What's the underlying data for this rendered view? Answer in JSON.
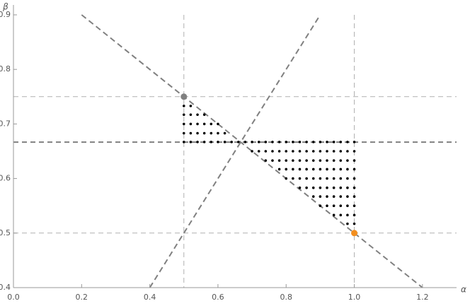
{
  "chart_data": {
    "type": "scatter",
    "xlabel": "α",
    "ylabel": "β",
    "xlim": [
      0,
      1.3
    ],
    "ylim": [
      0.4,
      0.9
    ],
    "xticks": [
      {
        "value": 0,
        "label": "0.0"
      },
      0.2,
      0.4,
      0.6,
      0.8,
      {
        "value": 1,
        "label": "1.0"
      },
      1.2
    ],
    "yticks": [
      0.4,
      0.5,
      0.6,
      0.7,
      0.8,
      0.9
    ],
    "vlines": [
      {
        "x": 0.5,
        "color": "#b0b0b0"
      },
      {
        "x": 1,
        "color": "#b0b0b0"
      }
    ],
    "hlines": [
      {
        "y": 0.75,
        "color": "#b0b0b0"
      },
      {
        "y": 0.5,
        "color": "#b0b0b0"
      },
      {
        "y": 0.6667,
        "color": "#808080"
      }
    ],
    "lines": [
      {
        "color": "#808080",
        "x": [
          0.2,
          1.2
        ],
        "values": [
          0.9,
          0.4
        ]
      },
      {
        "color": "#808080",
        "x": [
          0.4,
          0.9
        ],
        "values": [
          0.4,
          0.9
        ]
      }
    ],
    "points": [
      {
        "color": "#808080",
        "x": [
          0.5
        ],
        "values": [
          0.75
        ]
      },
      {
        "color": "#f28e1e",
        "x": [
          1
        ],
        "values": [
          0.5
        ]
      }
    ],
    "series": [
      {
        "color": "#000000",
        "x": [
          0.5,
          0.52
        ],
        "values": [
          0.733,
          0.733
        ]
      },
      {
        "color": "#000000",
        "x": [
          0.5,
          0.52,
          0.54,
          0.56
        ],
        "values": [
          0.717,
          0.717,
          0.717,
          0.717
        ]
      },
      {
        "color": "#000000",
        "x": [
          0.5,
          0.52,
          0.54,
          0.56,
          0.58,
          0.6
        ],
        "values": [
          0.7,
          0.7,
          0.7,
          0.7,
          0.7,
          0.7
        ]
      },
      {
        "color": "#000000",
        "x": [
          0.5,
          0.52,
          0.54,
          0.56,
          0.58,
          0.6,
          0.62
        ],
        "values": [
          0.683,
          0.683,
          0.683,
          0.683,
          0.683,
          0.683,
          0.683
        ]
      },
      {
        "color": "#000000",
        "x": [
          0.5,
          0.52,
          0.54,
          0.56,
          0.58,
          0.6,
          0.62,
          0.64,
          0.66,
          0.68,
          0.7,
          0.72,
          0.74,
          0.76,
          0.78,
          0.8,
          0.82,
          0.84,
          0.86,
          0.88,
          0.9,
          0.92,
          0.94,
          0.96,
          0.98,
          1
        ],
        "values": [
          0.667,
          0.667,
          0.667,
          0.667,
          0.667,
          0.667,
          0.667,
          0.667,
          0.667,
          0.667,
          0.667,
          0.667,
          0.667,
          0.667,
          0.667,
          0.667,
          0.667,
          0.667,
          0.667,
          0.667,
          0.667,
          0.667,
          0.667,
          0.667,
          0.667,
          0.667
        ]
      },
      {
        "color": "#000000",
        "x": [
          0.7,
          0.72,
          0.74,
          0.76,
          0.78,
          0.8,
          0.82,
          0.84,
          0.86,
          0.88,
          0.9,
          0.92,
          0.94,
          0.96,
          0.98,
          1
        ],
        "values": [
          0.65,
          0.65,
          0.65,
          0.65,
          0.65,
          0.65,
          0.65,
          0.65,
          0.65,
          0.65,
          0.65,
          0.65,
          0.65,
          0.65,
          0.65,
          0.65
        ]
      },
      {
        "color": "#000000",
        "x": [
          0.74,
          0.76,
          0.78,
          0.8,
          0.82,
          0.84,
          0.86,
          0.88,
          0.9,
          0.92,
          0.94,
          0.96,
          0.98,
          1
        ],
        "values": [
          0.633,
          0.633,
          0.633,
          0.633,
          0.633,
          0.633,
          0.633,
          0.633,
          0.633,
          0.633,
          0.633,
          0.633,
          0.633,
          0.633
        ]
      },
      {
        "color": "#000000",
        "x": [
          0.78,
          0.8,
          0.82,
          0.84,
          0.86,
          0.88,
          0.9,
          0.92,
          0.94,
          0.96,
          0.98,
          1
        ],
        "values": [
          0.617,
          0.617,
          0.617,
          0.617,
          0.617,
          0.617,
          0.617,
          0.617,
          0.617,
          0.617,
          0.617,
          0.617
        ]
      },
      {
        "color": "#000000",
        "x": [
          0.8,
          0.82,
          0.84,
          0.86,
          0.88,
          0.9,
          0.92,
          0.94,
          0.96,
          0.98,
          1
        ],
        "values": [
          0.6,
          0.6,
          0.6,
          0.6,
          0.6,
          0.6,
          0.6,
          0.6,
          0.6,
          0.6,
          0.6
        ]
      },
      {
        "color": "#000000",
        "x": [
          0.84,
          0.86,
          0.88,
          0.9,
          0.92,
          0.94,
          0.96,
          0.98,
          1
        ],
        "values": [
          0.583,
          0.583,
          0.583,
          0.583,
          0.583,
          0.583,
          0.583,
          0.583,
          0.583
        ]
      },
      {
        "color": "#000000",
        "x": [
          0.88,
          0.9,
          0.92,
          0.94,
          0.96,
          0.98,
          1
        ],
        "values": [
          0.567,
          0.567,
          0.567,
          0.567,
          0.567,
          0.567,
          0.567
        ]
      },
      {
        "color": "#000000",
        "x": [
          0.9,
          0.92,
          0.94,
          0.96,
          0.98,
          1
        ],
        "values": [
          0.55,
          0.55,
          0.55,
          0.55,
          0.55,
          0.55
        ]
      },
      {
        "color": "#000000",
        "x": [
          0.94,
          0.96,
          0.98,
          1
        ],
        "values": [
          0.533,
          0.533,
          0.533,
          0.533
        ]
      },
      {
        "color": "#000000",
        "x": [
          0.98,
          1
        ],
        "values": [
          0.517,
          0.517
        ]
      }
    ]
  }
}
